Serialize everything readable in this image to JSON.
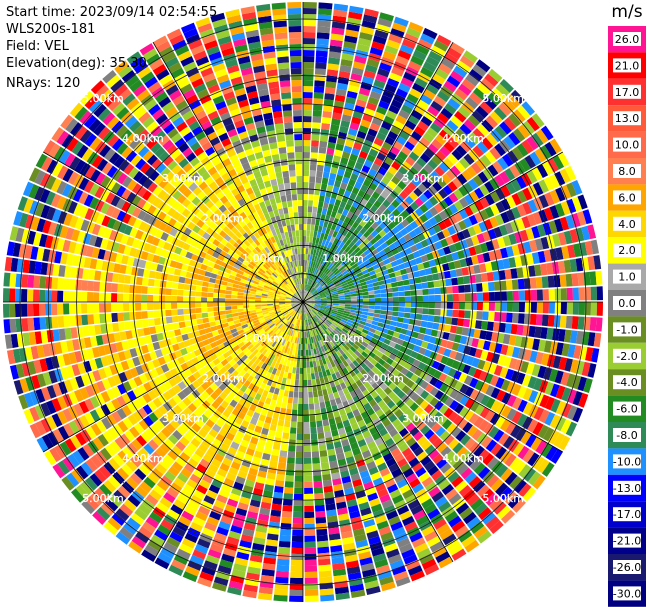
{
  "info": {
    "start_time": "Start time: 2023/09/14 02:54:55",
    "instrument": "WLS200s-181",
    "field": "Field: VEL",
    "elevation": "Elevation(deg): 35.30",
    "nrays": "NRays: 120"
  },
  "chart_data": {
    "type": "heatmap",
    "projection": "polar PPI",
    "field": "VEL",
    "units": "m/s",
    "nrays": 120,
    "range_rings_km": [
      1.0,
      2.0,
      3.0,
      4.0,
      5.0
    ],
    "range_ring_labels": [
      "1.00km",
      "2.00km",
      "3.00km",
      "4.00km",
      "5.00km"
    ],
    "max_range_km": 5.3,
    "colorbar": {
      "label": "m/s",
      "ticks": [
        "26.0",
        "21.0",
        "17.0",
        "13.0",
        "10.0",
        "8.0",
        "6.0",
        "4.0",
        "2.0",
        "1.0",
        "0.0",
        "-1.0",
        "-2.0",
        "-4.0",
        "-6.0",
        "-8.0",
        "-10.0",
        "-13.0",
        "-17.0",
        "-21.0",
        "-26.0",
        "-30.0"
      ],
      "colors": [
        "#ff1493",
        "#ff0000",
        "#ff3030",
        "#ff5a3a",
        "#ff6a4a",
        "#ff7f50",
        "#ffa500",
        "#ffd700",
        "#ffff00",
        "#a9a9a9",
        "#808080",
        "#6b8e23",
        "#9acd32",
        "#6b8e23",
        "#228b22",
        "#2e8b57",
        "#1e90ff",
        "#0000ff",
        "#0000cd",
        "#00008b",
        "#191970",
        "#000080"
      ]
    }
  }
}
